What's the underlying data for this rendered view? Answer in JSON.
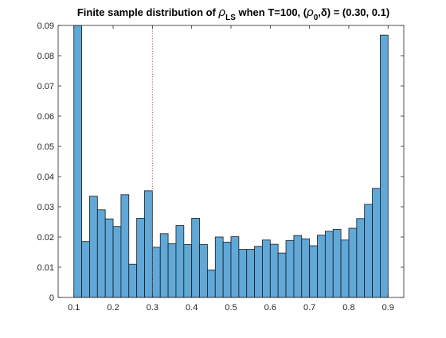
{
  "chart_data": {
    "type": "bar",
    "title_parts": {
      "lead": "Finite sample distribution of ",
      "rho": "ρ",
      "rho_sub": "LS",
      "mid": " when T=100, (",
      "rho2": "ρ",
      "rho2_sub": "0",
      "tail": ",δ) = (0.30, 0.1)"
    },
    "xlabel": "",
    "ylabel": "",
    "xlim": [
      0.06,
      0.94
    ],
    "ylim": [
      0,
      0.09
    ],
    "xticks": [
      "0.1",
      "0.2",
      "0.3",
      "0.4",
      "0.5",
      "0.6",
      "0.7",
      "0.8",
      "0.9"
    ],
    "xtick_values": [
      0.1,
      0.2,
      0.3,
      0.4,
      0.5,
      0.6,
      0.7,
      0.8,
      0.9
    ],
    "yticks": [
      "0",
      "0.01",
      "0.02",
      "0.03",
      "0.04",
      "0.05",
      "0.06",
      "0.07",
      "0.08",
      "0.09"
    ],
    "ytick_values": [
      0,
      0.01,
      0.02,
      0.03,
      0.04,
      0.05,
      0.06,
      0.07,
      0.08,
      0.09
    ],
    "bin_width": 0.02,
    "bin_left_edges": [
      0.1,
      0.12,
      0.14,
      0.16,
      0.18,
      0.2,
      0.22,
      0.24,
      0.26,
      0.28,
      0.3,
      0.32,
      0.34,
      0.36,
      0.38,
      0.4,
      0.42,
      0.44,
      0.46,
      0.48,
      0.5,
      0.52,
      0.54,
      0.56,
      0.58,
      0.6,
      0.62,
      0.64,
      0.66,
      0.68,
      0.7,
      0.72,
      0.74,
      0.76,
      0.78,
      0.8,
      0.82,
      0.84,
      0.86,
      0.88
    ],
    "values": [
      0.09,
      0.0185,
      0.0335,
      0.029,
      0.026,
      0.0235,
      0.034,
      0.011,
      0.0262,
      0.0353,
      0.0166,
      0.0211,
      0.0178,
      0.0238,
      0.0175,
      0.0262,
      0.0175,
      0.0091,
      0.02,
      0.0183,
      0.0201,
      0.0159,
      0.0159,
      0.0169,
      0.019,
      0.0176,
      0.0147,
      0.0188,
      0.0205,
      0.0194,
      0.0171,
      0.0206,
      0.0219,
      0.0225,
      0.019,
      0.0229,
      0.0261,
      0.0308,
      0.0361,
      0.0868
    ],
    "vline_x": 0.3,
    "colors": {
      "bar_fill": "#5fa8d8",
      "bar_stroke": "#1a1a1a",
      "vline": "#c0504d",
      "axis": "#262626"
    }
  }
}
